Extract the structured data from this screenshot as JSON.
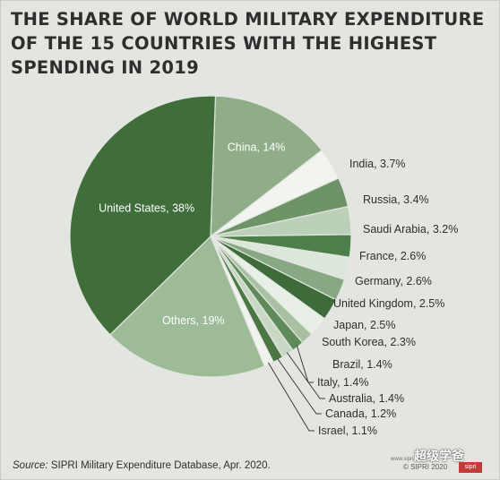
{
  "title_lines": [
    "THE SHARE OF WORLD MILITARY EXPENDITURE",
    "OF THE 15 COUNTRIES WITH THE HIGHEST",
    "SPENDING IN 2019"
  ],
  "chart_data": {
    "type": "pie",
    "unit": "%",
    "slices": [
      {
        "label": "China, 14%",
        "value": 14,
        "color": "#8fae88"
      },
      {
        "label": "India, 3.7%",
        "value": 3.7,
        "color": "#f2f4f0"
      },
      {
        "label": "Russia, 3.4%",
        "value": 3.4,
        "color": "#6d9367"
      },
      {
        "label": "Saudi Arabia, 3.2%",
        "value": 3.2,
        "color": "#bccfb8"
      },
      {
        "label": "France, 2.6%",
        "value": 2.6,
        "color": "#4e7e49"
      },
      {
        "label": "Germany, 2.6%",
        "value": 2.6,
        "color": "#dde6da"
      },
      {
        "label": "United Kingdom, 2.5%",
        "value": 2.5,
        "color": "#88a883"
      },
      {
        "label": "Japan, 2.5%",
        "value": 2.5,
        "color": "#3d6b3a"
      },
      {
        "label": "South Korea, 2.3%",
        "value": 2.3,
        "color": "#e8efe6"
      },
      {
        "label": "Brazil, 1.4%",
        "value": 1.4,
        "color": "#a7c1a2"
      },
      {
        "label": "Italy, 1.4%",
        "value": 1.4,
        "color": "#5f8a5a"
      },
      {
        "label": "Australia, 1.4%",
        "value": 1.4,
        "color": "#c8d8c4"
      },
      {
        "label": "Canada, 1.2%",
        "value": 1.2,
        "color": "#4a7744"
      },
      {
        "label": "Israel, 1.1%",
        "value": 1.1,
        "color": "#f0f3ee"
      },
      {
        "label": "Others, 19%",
        "value": 19,
        "color": "#9dbb97"
      },
      {
        "label": "United States, 38%",
        "value": 38,
        "color": "#3f6e3b"
      }
    ]
  },
  "source": {
    "prefix": "Source:",
    "text": " SIPRI Military Expenditure Database, Apr. 2020."
  },
  "credit": "© SIPRI 2020",
  "website": "www.sipri.org",
  "watermark": "超级学爸",
  "badge": "sipri"
}
